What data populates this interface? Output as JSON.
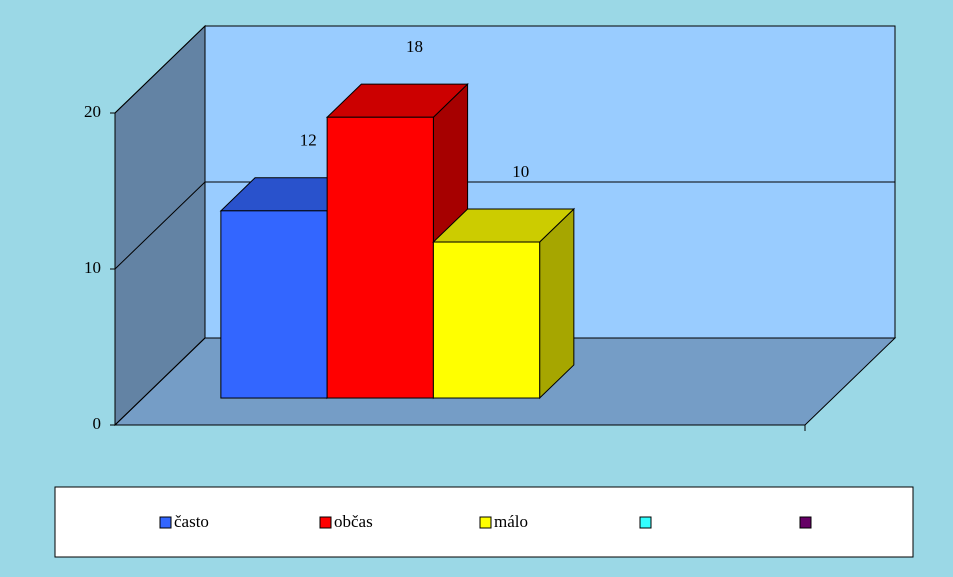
{
  "chart_data": {
    "type": "bar3d",
    "categories": [
      null
    ],
    "series": [
      {
        "name": "často",
        "color": "#3366ff",
        "values": [
          12
        ]
      },
      {
        "name": "občas",
        "color": "#ff0000",
        "values": [
          18
        ]
      },
      {
        "name": "málo",
        "color": "#ffff00",
        "values": [
          10
        ]
      },
      {
        "name": null,
        "color": "#33ffff",
        "values": [
          null
        ]
      },
      {
        "name": null,
        "color": "#660066",
        "values": [
          null
        ]
      }
    ],
    "ylim": [
      0,
      20
    ],
    "yticks": [
      0,
      10,
      20
    ],
    "grid": true,
    "legend": "bottom"
  }
}
